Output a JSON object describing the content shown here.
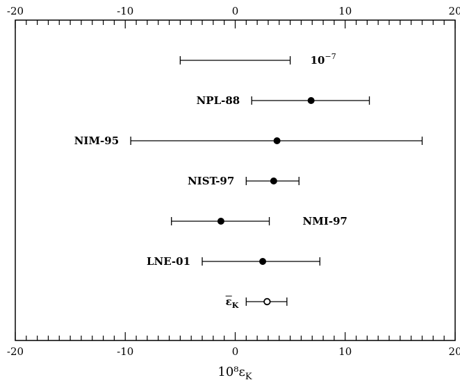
{
  "chart_data": {
    "type": "scatter",
    "title": "",
    "xlabel": "10⁸ε",
    "xlabel_sub": "K",
    "xlim": [
      -20,
      20
    ],
    "major_ticks": [
      -20,
      -10,
      0,
      10,
      20
    ],
    "minor_tick_step": 1,
    "grid": false,
    "points": [
      {
        "label": "10",
        "label_sup": "−7",
        "value": null,
        "low": -5,
        "high": 5,
        "marker": "none",
        "label_side": "right"
      },
      {
        "label": "NPL-88",
        "value": 6.9,
        "low": 1.5,
        "high": 12.2,
        "marker": "filled",
        "label_side": "left"
      },
      {
        "label": "NIM-95",
        "value": 3.8,
        "low": -9.5,
        "high": 17.0,
        "marker": "filled",
        "label_side": "left"
      },
      {
        "label": "NIST-97",
        "value": 3.5,
        "low": 1.0,
        "high": 5.8,
        "marker": "filled",
        "label_side": "left"
      },
      {
        "label": "NMI-97",
        "value": -1.3,
        "low": -5.8,
        "high": 3.1,
        "marker": "filled",
        "label_side": "right"
      },
      {
        "label": "LNE-01",
        "value": 2.5,
        "low": -3.0,
        "high": 7.7,
        "marker": "filled",
        "label_side": "left"
      },
      {
        "label": "ε",
        "label_sub": "K",
        "label_overline": true,
        "value": 2.9,
        "low": 1.0,
        "high": 4.7,
        "marker": "open",
        "label_side": "left"
      }
    ]
  }
}
